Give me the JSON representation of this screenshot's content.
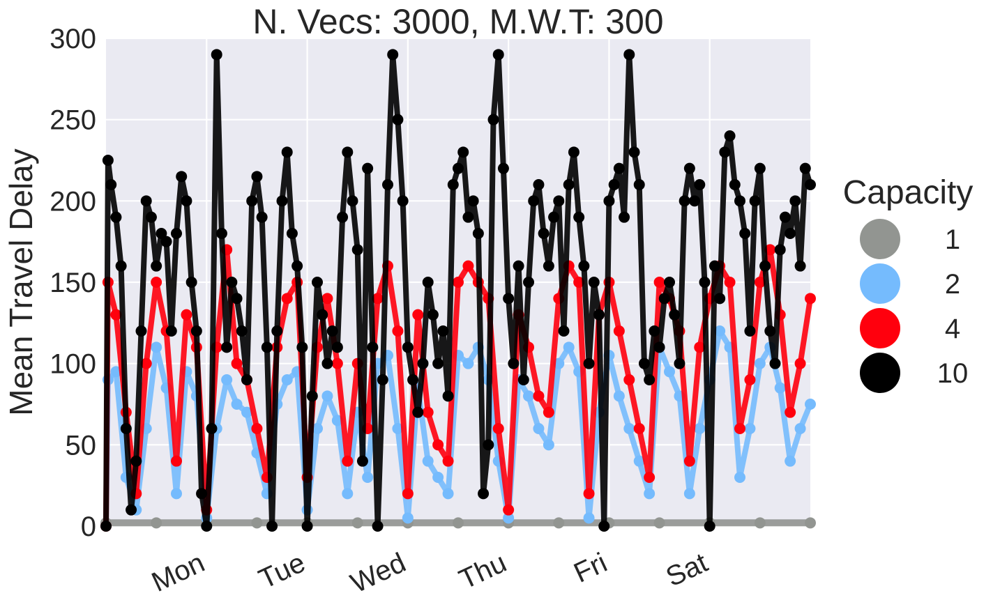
{
  "chart_data": {
    "type": "scatter",
    "title": "N. Vecs: 3000, M.W.T: 300",
    "xlabel": "",
    "ylabel": "Mean Travel Delay",
    "ylim": [
      0,
      300
    ],
    "yticks": [
      "0",
      "50",
      "100",
      "150",
      "200",
      "250",
      "300"
    ],
    "x_domain_days": [
      0,
      7
    ],
    "x_ticks": [
      {
        "label": "Mon",
        "day": 1
      },
      {
        "label": "Tue",
        "day": 2
      },
      {
        "label": "Wed",
        "day": 3
      },
      {
        "label": "Thu",
        "day": 4
      },
      {
        "label": "Fri",
        "day": 5
      },
      {
        "label": "Sat",
        "day": 6
      }
    ],
    "grid": true,
    "legend": {
      "title": "Capacity",
      "placement": "right",
      "entries": [
        {
          "label": "1",
          "color": "#929591"
        },
        {
          "label": "2",
          "color": "#75bbfd"
        },
        {
          "label": "4",
          "color": "#ff000d"
        },
        {
          "label": "10",
          "color": "#000000"
        }
      ]
    },
    "series": [
      {
        "name": "1",
        "color": "#929591",
        "x": [
          0,
          0.5,
          1,
          1.5,
          2,
          2.5,
          3,
          3.5,
          4,
          4.5,
          5,
          5.5,
          6,
          6.5,
          7
        ],
        "y": [
          2,
          2,
          2,
          2,
          2,
          2,
          2,
          2,
          2,
          2,
          2,
          2,
          2,
          2,
          2
        ]
      },
      {
        "name": "2",
        "color": "#75bbfd",
        "x": [
          0,
          0.02,
          0.1,
          0.2,
          0.3,
          0.4,
          0.5,
          0.6,
          0.7,
          0.8,
          0.9,
          1.0,
          1.1,
          1.2,
          1.3,
          1.4,
          1.5,
          1.6,
          1.7,
          1.8,
          1.9,
          2.0,
          2.1,
          2.2,
          2.3,
          2.4,
          2.5,
          2.6,
          2.7,
          2.8,
          2.9,
          3.0,
          3.1,
          3.2,
          3.3,
          3.4,
          3.5,
          3.6,
          3.7,
          3.8,
          3.9,
          4.0,
          4.1,
          4.2,
          4.3,
          4.4,
          4.5,
          4.6,
          4.7,
          4.8,
          4.9,
          5.0,
          5.1,
          5.2,
          5.3,
          5.4,
          5.5,
          5.6,
          5.7,
          5.8,
          5.9,
          6.0,
          6.1,
          6.2,
          6.3,
          6.4,
          6.5,
          6.6,
          6.7,
          6.8,
          6.9,
          7.0
        ],
        "y": [
          0,
          90,
          95,
          30,
          10,
          60,
          110,
          85,
          20,
          95,
          80,
          5,
          60,
          90,
          75,
          70,
          45,
          20,
          75,
          90,
          95,
          10,
          60,
          80,
          65,
          20,
          70,
          30,
          100,
          105,
          60,
          5,
          85,
          40,
          30,
          20,
          105,
          100,
          110,
          90,
          40,
          5,
          90,
          80,
          60,
          50,
          100,
          110,
          95,
          5,
          70,
          105,
          80,
          60,
          40,
          20,
          110,
          95,
          80,
          20,
          60,
          90,
          120,
          110,
          30,
          60,
          100,
          110,
          85,
          40,
          60,
          75
        ]
      },
      {
        "name": "4",
        "color": "#ff000d",
        "x": [
          0,
          0.02,
          0.1,
          0.2,
          0.3,
          0.4,
          0.5,
          0.6,
          0.7,
          0.8,
          0.9,
          1.0,
          1.1,
          1.2,
          1.3,
          1.4,
          1.5,
          1.6,
          1.7,
          1.8,
          1.9,
          2.0,
          2.1,
          2.2,
          2.3,
          2.4,
          2.5,
          2.6,
          2.7,
          2.8,
          2.9,
          3.0,
          3.1,
          3.2,
          3.3,
          3.4,
          3.5,
          3.6,
          3.7,
          3.8,
          3.9,
          4.0,
          4.1,
          4.2,
          4.3,
          4.4,
          4.5,
          4.6,
          4.7,
          4.8,
          4.9,
          5.0,
          5.1,
          5.2,
          5.3,
          5.4,
          5.5,
          5.6,
          5.7,
          5.8,
          5.9,
          6.0,
          6.1,
          6.2,
          6.3,
          6.4,
          6.5,
          6.6,
          6.7,
          6.8,
          6.9,
          7.0
        ],
        "y": [
          0,
          150,
          130,
          70,
          20,
          100,
          150,
          120,
          40,
          130,
          110,
          10,
          110,
          170,
          100,
          90,
          60,
          30,
          110,
          140,
          150,
          30,
          110,
          140,
          100,
          40,
          100,
          60,
          140,
          160,
          120,
          20,
          130,
          70,
          50,
          40,
          150,
          160,
          150,
          140,
          60,
          10,
          130,
          110,
          80,
          70,
          140,
          160,
          150,
          20,
          130,
          150,
          120,
          90,
          60,
          30,
          150,
          140,
          120,
          40,
          110,
          140,
          160,
          150,
          60,
          90,
          150,
          170,
          130,
          70,
          100,
          140
        ]
      },
      {
        "name": "10",
        "color": "#000000",
        "x": [
          0,
          0.02,
          0.05,
          0.1,
          0.15,
          0.2,
          0.25,
          0.3,
          0.35,
          0.4,
          0.45,
          0.5,
          0.55,
          0.6,
          0.65,
          0.7,
          0.75,
          0.8,
          0.85,
          0.9,
          0.95,
          1.0,
          1.05,
          1.1,
          1.15,
          1.2,
          1.25,
          1.3,
          1.35,
          1.4,
          1.45,
          1.5,
          1.55,
          1.6,
          1.65,
          1.7,
          1.75,
          1.8,
          1.85,
          1.9,
          1.95,
          2.0,
          2.05,
          2.1,
          2.15,
          2.2,
          2.25,
          2.3,
          2.35,
          2.4,
          2.45,
          2.5,
          2.55,
          2.6,
          2.65,
          2.7,
          2.75,
          2.8,
          2.85,
          2.9,
          2.95,
          3.0,
          3.05,
          3.1,
          3.15,
          3.2,
          3.25,
          3.3,
          3.35,
          3.4,
          3.45,
          3.5,
          3.55,
          3.6,
          3.65,
          3.7,
          3.75,
          3.8,
          3.85,
          3.9,
          3.95,
          4.0,
          4.05,
          4.1,
          4.15,
          4.2,
          4.25,
          4.3,
          4.35,
          4.4,
          4.45,
          4.5,
          4.55,
          4.6,
          4.65,
          4.7,
          4.75,
          4.8,
          4.85,
          4.9,
          4.95,
          5.0,
          5.05,
          5.1,
          5.15,
          5.2,
          5.25,
          5.3,
          5.35,
          5.4,
          5.45,
          5.5,
          5.55,
          5.6,
          5.65,
          5.7,
          5.75,
          5.8,
          5.85,
          5.9,
          5.95,
          6.0,
          6.05,
          6.1,
          6.15,
          6.2,
          6.25,
          6.3,
          6.35,
          6.4,
          6.45,
          6.5,
          6.55,
          6.6,
          6.65,
          6.7,
          6.75,
          6.8,
          6.85,
          6.9,
          6.95,
          7.0
        ],
        "y": [
          0,
          225,
          210,
          190,
          160,
          60,
          10,
          40,
          120,
          200,
          190,
          160,
          180,
          175,
          120,
          180,
          215,
          200,
          150,
          120,
          20,
          0,
          60,
          290,
          180,
          110,
          150,
          140,
          120,
          90,
          200,
          215,
          190,
          110,
          0,
          120,
          200,
          230,
          180,
          160,
          110,
          0,
          80,
          150,
          130,
          100,
          120,
          110,
          190,
          230,
          200,
          170,
          40,
          220,
          110,
          0,
          90,
          210,
          290,
          250,
          200,
          110,
          90,
          70,
          100,
          150,
          130,
          100,
          120,
          80,
          210,
          220,
          230,
          190,
          200,
          180,
          20,
          50,
          250,
          290,
          220,
          140,
          100,
          160,
          90,
          150,
          200,
          210,
          180,
          160,
          190,
          200,
          120,
          210,
          230,
          190,
          160,
          100,
          150,
          130,
          0,
          200,
          210,
          220,
          190,
          290,
          230,
          210,
          100,
          90,
          120,
          110,
          140,
          150,
          130,
          100,
          200,
          220,
          200,
          210,
          150,
          0,
          160,
          140,
          230,
          240,
          210,
          200,
          180,
          120,
          200,
          220,
          160,
          120,
          100,
          170,
          190,
          180,
          200,
          160,
          220,
          210
        ]
      }
    ]
  }
}
